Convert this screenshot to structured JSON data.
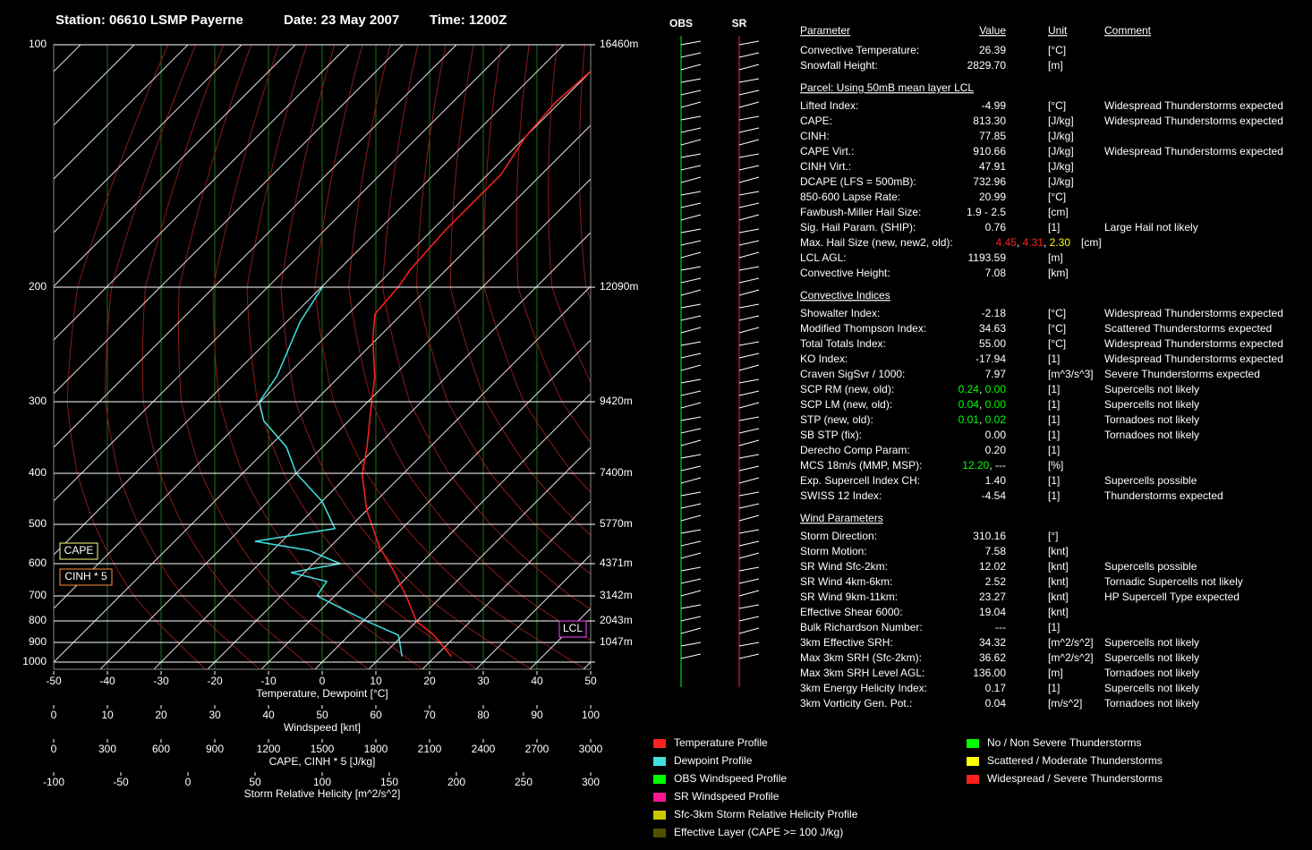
{
  "header": {
    "station": "Station: 06610 LSMP Payerne",
    "date": "Date: 23 May 2007",
    "time": "Time: 1200Z"
  },
  "skewt": {
    "pressure_ticks": [
      100,
      200,
      300,
      400,
      500,
      600,
      700,
      800,
      900,
      1000
    ],
    "height_labels": [
      {
        "pressure": 100,
        "label": "16460m"
      },
      {
        "pressure": 200,
        "label": "12090m"
      },
      {
        "pressure": 300,
        "label": "9420m"
      },
      {
        "pressure": 400,
        "label": "7400m"
      },
      {
        "pressure": 500,
        "label": "5770m"
      },
      {
        "pressure": 600,
        "label": "4371m"
      },
      {
        "pressure": 700,
        "label": "3142m"
      },
      {
        "pressure": 800,
        "label": "2043m"
      },
      {
        "pressure": 900,
        "label": "1047m"
      }
    ],
    "temperature_axis": {
      "label": "Temperature, Dewpoint [°C]",
      "xlim": [
        -50,
        50
      ],
      "ticks": [
        -50,
        -40,
        -30,
        -20,
        -10,
        0,
        10,
        20,
        30,
        40,
        50
      ]
    },
    "windspeed_axis": {
      "label": "Windspeed [knt]",
      "xlim": [
        0,
        100
      ],
      "ticks": [
        0,
        10,
        20,
        30,
        40,
        50,
        60,
        70,
        80,
        90,
        100
      ]
    },
    "cape_axis": {
      "label": "CAPE, CINH * 5 [J/kg]",
      "xlim": [
        0,
        3000
      ],
      "ticks": [
        0,
        300,
        600,
        900,
        1200,
        1500,
        1800,
        2100,
        2400,
        2700,
        3000
      ]
    },
    "srh_axis": {
      "label": "Storm Relative Helicity [m^2/s^2]",
      "xlim": [
        -100,
        300
      ],
      "ticks": [
        -100,
        -50,
        0,
        50,
        100,
        150,
        200,
        250,
        300
      ]
    },
    "cape_box": "CAPE",
    "cinh_box": "CINH * 5",
    "lcl_box": "LCL",
    "temperature": {
      "color": "#ff2020",
      "pressure": [
        970,
        865,
        802,
        700,
        625,
        555,
        470,
        402,
        360,
        300,
        275,
        240,
        220,
        200,
        190,
        170,
        155,
        145,
        130,
        118,
        107
      ],
      "temp": [
        23.0,
        15.8,
        10.0,
        3.3,
        -3.3,
        -10.8,
        -20.0,
        -27.5,
        -31.7,
        -39.3,
        -43.3,
        -50.8,
        -55.0,
        -55.7,
        -56.7,
        -57.5,
        -57.5,
        -57.5,
        -60.0,
        -60.8,
        -60.0
      ]
    },
    "dewpoint": {
      "color": "#40e0e0",
      "pressure": [
        970,
        865,
        802,
        700,
        653,
        626,
        600,
        564,
        541,
        510,
        452,
        400,
        360,
        324,
        300,
        274,
        226,
        200
      ],
      "temp": [
        13.8,
        9.2,
        0.8,
        -13.3,
        -14.2,
        -22.5,
        -15.0,
        -23.3,
        -35.0,
        -22.5,
        -30.0,
        -40.0,
        -46.7,
        -55.8,
        -60.2,
        -61.7,
        -67.5,
        -69.8
      ]
    }
  },
  "wind_columns": {
    "obs": {
      "label": "OBS",
      "color": "#00ff00"
    },
    "sr": {
      "label": "SR",
      "color": "#ff1493"
    }
  },
  "table": {
    "columns": [
      "Parameter",
      "Value",
      "Unit",
      "Comment"
    ],
    "rows": [
      {
        "parameter": "Convective Temperature:",
        "value": "26.39",
        "color": "#ff2020",
        "unit": "[°C]"
      },
      {
        "parameter": "Snowfall Height:",
        "value": "2829.70",
        "color": "#ffffff",
        "unit": "[m]"
      },
      {
        "heading": "Parcel: Using 50mB mean layer LCL"
      },
      {
        "parameter": "Lifted Index:",
        "value": "-4.99",
        "color": "#ff2020",
        "unit": "[°C]",
        "comment": "Widespread Thunderstorms expected"
      },
      {
        "parameter": "CAPE:",
        "value": "813.30",
        "color": "#ff2020",
        "unit": "[J/kg]",
        "comment": "Widespread Thunderstorms expected"
      },
      {
        "parameter": "CINH:",
        "value": "77.85",
        "color": "#ff2020",
        "unit": "[J/kg]"
      },
      {
        "parameter": "CAPE Virt.:",
        "value": "910.66",
        "color": "#ff2020",
        "unit": "[J/kg]",
        "comment": "Widespread Thunderstorms expected"
      },
      {
        "parameter": "CINH Virt.:",
        "value": "47.91",
        "color": "#ff2020",
        "unit": "[J/kg]"
      },
      {
        "parameter": "DCAPE (LFS = 500mB):",
        "value": "732.96",
        "color": "#ff2020",
        "unit": "[J/kg]"
      },
      {
        "parameter": "850-600 Lapse Rate:",
        "value": "20.99",
        "color": "#ff2020",
        "unit": "[°C]"
      },
      {
        "parameter": "Fawbush-Miller Hail Size:",
        "value": "1.9 - 2.5",
        "color": "#ffff00",
        "unit": "[cm]"
      },
      {
        "parameter": "Sig. Hail Param. (SHIP):",
        "value": "0.76",
        "color": "#00ff00",
        "unit": "[1]",
        "comment": "Large Hail not likely"
      },
      {
        "parameter": "Max. Hail Size (new, new2, old):",
        "value": [
          "4.45",
          ", ",
          "4.31",
          ", ",
          "2.30"
        ],
        "color": [
          "#ff2020",
          "#ffffff",
          "#ff2020",
          "#ffffff",
          "#ffff00"
        ],
        "unit": "[cm]"
      },
      {
        "parameter": "LCL AGL:",
        "value": "1193.59",
        "color": "#ffff00",
        "unit": "[m]"
      },
      {
        "parameter": "Convective Height:",
        "value": "7.08",
        "color": "#ffff00",
        "unit": "[km]"
      },
      {
        "heading": "Convective Indices"
      },
      {
        "parameter": "Showalter Index:",
        "value": "-2.18",
        "color": "#ff2020",
        "unit": "[°C]",
        "comment": "Widespread Thunderstorms expected"
      },
      {
        "parameter": "Modified Thompson Index:",
        "value": "34.63",
        "color": "#ffff00",
        "unit": "[°C]",
        "comment": "Scattered Thunderstorms expected"
      },
      {
        "parameter": "Total Totals Index:",
        "value": "55.00",
        "color": "#ff2020",
        "unit": "[°C]",
        "comment": "Widespread Thunderstorms expected"
      },
      {
        "parameter": "KO Index:",
        "value": "-17.94",
        "color": "#ff2020",
        "unit": "[1]",
        "comment": "Widespread Thunderstorms expected"
      },
      {
        "parameter": "Craven SigSvr / 1000:",
        "value": "7.97",
        "color": "#ff2020",
        "unit": "[m^3/s^3]",
        "comment": "Severe Thunderstorms expected"
      },
      {
        "parameter": "SCP RM (new, old):",
        "value": [
          "0.24",
          ", ",
          "0.00"
        ],
        "color": [
          "#00ff00",
          "#ffffff",
          "#00ff00"
        ],
        "unit": "[1]",
        "comment": "Supercells not likely"
      },
      {
        "parameter": "SCP LM (new, old):",
        "value": [
          "0.04",
          ", ",
          "0.00"
        ],
        "color": [
          "#00ff00",
          "#ffffff",
          "#00ff00"
        ],
        "unit": "[1]",
        "comment": "Supercells not likely"
      },
      {
        "parameter": "STP (new, old):",
        "value": [
          "0.01",
          ", ",
          "0.02"
        ],
        "color": [
          "#00ff00",
          "#ffffff",
          "#00ff00"
        ],
        "unit": "[1]",
        "comment": "Tornadoes not likely"
      },
      {
        "parameter": "SB STP (fix):",
        "value": "0.00",
        "color": "#00ff00",
        "unit": "[1]",
        "comment": "Tornadoes not likely"
      },
      {
        "parameter": "Derecho Comp Param:",
        "value": "0.20",
        "color": "#00ff00",
        "unit": "[1]"
      },
      {
        "parameter": "MCS 18m/s (MMP, MSP):",
        "value": [
          "12.20",
          ", ",
          "---"
        ],
        "color": [
          "#00ff00",
          "#ffffff",
          "#ffffff"
        ],
        "unit": "[%]"
      },
      {
        "parameter": "Exp. Supercell Index CH:",
        "value": "1.40",
        "color": "#ffff00",
        "unit": "[1]",
        "comment": "Supercells possible"
      },
      {
        "parameter": "SWISS 12 Index:",
        "value": "-4.54",
        "color": "#ff2020",
        "unit": "[1]",
        "comment": "Thunderstorms expected"
      },
      {
        "heading": "Wind Parameters"
      },
      {
        "parameter": "Storm Direction:",
        "value": "310.16",
        "color": "#ffffff",
        "unit": "[°]"
      },
      {
        "parameter": "Storm Motion:",
        "value": "7.58",
        "color": "#00ff00",
        "unit": "[knt]"
      },
      {
        "parameter": "SR Wind Sfc-2km:",
        "value": "12.02",
        "color": "#ffff00",
        "unit": "[knt]",
        "comment": "Supercells possible"
      },
      {
        "parameter": "SR Wind 4km-6km:",
        "value": "2.52",
        "color": "#00ff00",
        "unit": "[knt]",
        "comment": "Tornadic Supercells not likely"
      },
      {
        "parameter": "SR Wind 9km-11km:",
        "value": "23.27",
        "color": "#ff2020",
        "unit": "[knt]",
        "comment": "HP Supercell Type expected"
      },
      {
        "parameter": "Effective Shear 6000:",
        "value": "19.04",
        "color": "#00ff00",
        "unit": "[knt]"
      },
      {
        "parameter": "Bulk Richardson Number:",
        "value": "---",
        "color": "#ffffff",
        "unit": "[1]"
      },
      {
        "parameter": "3km Effective SRH:",
        "value": "34.32",
        "color": "#00ff00",
        "unit": "[m^2/s^2]",
        "comment": "Supercells not likely"
      },
      {
        "parameter": "Max 3km SRH (Sfc-2km):",
        "value": "36.62",
        "color": "#00ff00",
        "unit": "[m^2/s^2]",
        "comment": "Supercells not likely"
      },
      {
        "parameter": "Max 3km SRH Level AGL:",
        "value": "136.00",
        "color": "#00ff00",
        "unit": "[m]",
        "comment": "Tornadoes not likely"
      },
      {
        "parameter": "3km Energy Helicity Index:",
        "value": "0.17",
        "color": "#00ff00",
        "unit": "[1]",
        "comment": "Supercells not likely"
      },
      {
        "parameter": "3km Vorticity Gen. Pot.:",
        "value": "0.04",
        "color": "#00ff00",
        "unit": "[m/s^2]",
        "comment": "Tornadoes not likely"
      }
    ]
  },
  "legend": [
    {
      "label": "Temperature Profile",
      "color": "#ff2020"
    },
    {
      "label": "Dewpoint Profile",
      "color": "#40e0e0"
    },
    {
      "label": "OBS Windspeed Profile",
      "color": "#00ff00"
    },
    {
      "label": "SR Windspeed Profile",
      "color": "#ff1493"
    },
    {
      "label": "Sfc-3km Storm Relative Helicity Profile",
      "color": "#c8c800"
    },
    {
      "label": "Effective Layer (CAPE >= 100 J/kg)",
      "color": "#505000"
    },
    {
      "label": "No / Non Severe Thunderstorms",
      "color": "#00ff00"
    },
    {
      "label": "Scattered / Moderate Thunderstorms",
      "color": "#ffff00"
    },
    {
      "label": "Widespread / Severe Thunderstorms",
      "color": "#ff2020"
    }
  ]
}
